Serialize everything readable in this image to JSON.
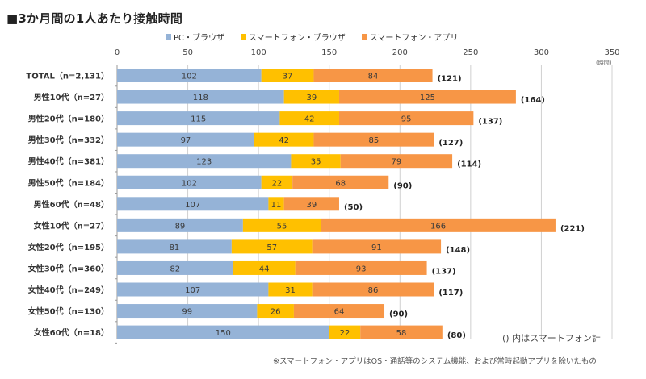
{
  "title": "■3か月間の1人あたり接触時間",
  "unit_label": "(時間)",
  "total_note": "() 内はスマートフォン計",
  "footnote": "※スマートフォン・アプリはOS・通話等のシステム機能、および常時起動アプリを除いたもの",
  "colors": {
    "pc_browser": "#95B3D7",
    "sp_browser": "#FFC000",
    "sp_app": "#F79646",
    "grid": "#d0d0d0"
  },
  "chart_data": {
    "type": "bar",
    "orientation": "horizontal",
    "stacked": true,
    "title": "■3か月間の1人あたり接触時間",
    "xlabel": "(時間)",
    "ylabel": "",
    "xlim": [
      0,
      350
    ],
    "xticks": [
      0,
      50,
      100,
      150,
      200,
      250,
      300,
      350
    ],
    "grid": true,
    "legend_position": "top",
    "categories": [
      "TOTAL（n=2,131）",
      "男性10代（n=27）",
      "男性20代（n=180）",
      "男性30代（n=332）",
      "男性40代（n=381）",
      "男性50代（n=184）",
      "男性60代（n=48）",
      "女性10代（n=27）",
      "女性20代（n=195）",
      "女性30代（n=360）",
      "女性40代（n=249）",
      "女性50代（n=130）",
      "女性60代（n=18）"
    ],
    "series": [
      {
        "name": "PC・ブラウザ",
        "key": "pc_browser",
        "values": [
          102,
          118,
          115,
          97,
          123,
          102,
          107,
          89,
          81,
          82,
          107,
          99,
          150
        ]
      },
      {
        "name": "スマートフォン・ブラウザ",
        "key": "sp_browser",
        "values": [
          37,
          39,
          42,
          42,
          35,
          22,
          11,
          55,
          57,
          44,
          31,
          26,
          22
        ]
      },
      {
        "name": "スマートフォン・アプリ",
        "key": "sp_app",
        "values": [
          84,
          125,
          95,
          85,
          79,
          68,
          39,
          166,
          91,
          93,
          86,
          64,
          58
        ]
      }
    ],
    "smartphone_totals": [
      "(121)",
      "(164)",
      "(137)",
      "(127)",
      "(114)",
      "(90)",
      "(50)",
      "(221)",
      "(148)",
      "(137)",
      "(117)",
      "(90)",
      "(80)"
    ]
  }
}
